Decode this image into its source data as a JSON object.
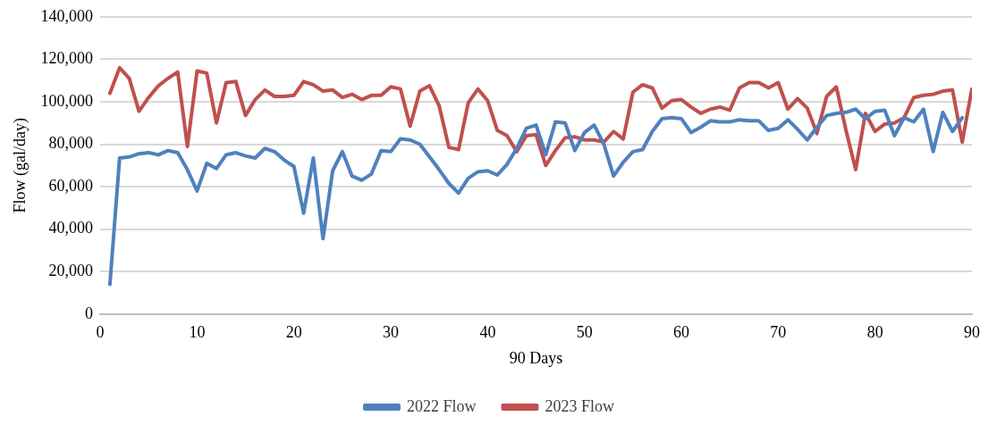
{
  "chart_data": {
    "type": "line",
    "xlabel": "90 Days",
    "ylabel": "Flow (gal/day)",
    "xlim": [
      0,
      90
    ],
    "xticks": [
      0,
      10,
      20,
      30,
      40,
      50,
      60,
      70,
      80,
      90
    ],
    "ylim": [
      0,
      140000
    ],
    "yticks": [
      0,
      {
        "value": 20000,
        "label": "20,000"
      },
      {
        "value": 40000,
        "label": "40,000"
      },
      {
        "value": 60000,
        "label": "60,000"
      },
      {
        "value": 80000,
        "label": "80,000"
      },
      {
        "value": 100000,
        "label": "100,000"
      },
      {
        "value": 120000,
        "label": "120,000"
      },
      {
        "value": 140000,
        "label": "140,000"
      }
    ],
    "grid": "y",
    "legend": "bottom",
    "marker": "none",
    "line_style": "solid",
    "series": [
      {
        "name": "2022 Flow",
        "color": "#4f81bd",
        "x": [
          1,
          2,
          3,
          4,
          5,
          6,
          7,
          8,
          9,
          10,
          11,
          12,
          13,
          14,
          15,
          16,
          17,
          18,
          19,
          20,
          21,
          22,
          23,
          24,
          25,
          26,
          27,
          28,
          29,
          30,
          31,
          32,
          33,
          34,
          35,
          36,
          37,
          38,
          39,
          40,
          41,
          42,
          43,
          44,
          45,
          46,
          47,
          48,
          49,
          50,
          51,
          52,
          53,
          54,
          55,
          56,
          57,
          58,
          59,
          60,
          61,
          62,
          63,
          64,
          65,
          66,
          67,
          68,
          69,
          70,
          71,
          72,
          73,
          74,
          75,
          76,
          77,
          78,
          79,
          80,
          81,
          82,
          83,
          84,
          85,
          86,
          87,
          88,
          89
        ],
        "values": [
          14000,
          73500,
          74000,
          75500,
          76000,
          75000,
          77000,
          76000,
          68000,
          58000,
          71000,
          68500,
          75000,
          76000,
          74500,
          73500,
          78000,
          76500,
          72500,
          69500,
          47500,
          73500,
          35500,
          67500,
          76500,
          65000,
          63000,
          66000,
          77000,
          76500,
          82500,
          82000,
          80000,
          74000,
          68000,
          61500,
          57000,
          64000,
          67000,
          67500,
          65500,
          70500,
          78000,
          87500,
          89000,
          75000,
          90500,
          90000,
          77000,
          85500,
          89000,
          80000,
          65000,
          71500,
          76500,
          77500,
          86000,
          92000,
          92500,
          92000,
          85500,
          88000,
          91000,
          90500,
          90500,
          91500,
          91000,
          91000,
          86500,
          87500,
          91500,
          87000,
          82000,
          88000,
          93500,
          94500,
          95000,
          96500,
          92000,
          95500,
          96000,
          84000,
          92500,
          90500,
          96500,
          76500,
          95000,
          86000,
          92500
        ]
      },
      {
        "name": "2023 Flow",
        "color": "#c0504d",
        "x": [
          1,
          2,
          3,
          4,
          5,
          6,
          7,
          8,
          9,
          10,
          11,
          12,
          13,
          14,
          15,
          16,
          17,
          18,
          19,
          20,
          21,
          22,
          23,
          24,
          25,
          26,
          27,
          28,
          29,
          30,
          31,
          32,
          33,
          34,
          35,
          36,
          37,
          38,
          39,
          40,
          41,
          42,
          43,
          44,
          45,
          46,
          47,
          48,
          49,
          50,
          51,
          52,
          53,
          54,
          55,
          56,
          57,
          58,
          59,
          60,
          61,
          62,
          63,
          64,
          65,
          66,
          67,
          68,
          69,
          70,
          71,
          72,
          73,
          74,
          75,
          76,
          77,
          78,
          79,
          80,
          81,
          82,
          83,
          84,
          85,
          86,
          87,
          88,
          89,
          90
        ],
        "values": [
          104000,
          116000,
          111000,
          95500,
          102000,
          107500,
          111000,
          114000,
          79000,
          114500,
          113500,
          90000,
          109000,
          109500,
          93500,
          101000,
          105500,
          102500,
          102500,
          103000,
          109500,
          108000,
          105000,
          105500,
          102000,
          103500,
          101000,
          103000,
          103000,
          107000,
          106000,
          88500,
          105000,
          107500,
          98000,
          78500,
          77500,
          99500,
          106000,
          100500,
          86500,
          84000,
          76500,
          84000,
          84500,
          70000,
          77000,
          83000,
          83500,
          82000,
          82000,
          81000,
          86000,
          82500,
          104500,
          108000,
          106500,
          97000,
          100500,
          101000,
          97500,
          94500,
          96500,
          97500,
          96000,
          106500,
          109000,
          109000,
          106500,
          109000,
          96500,
          101500,
          97000,
          85000,
          102500,
          107000,
          86500,
          68000,
          94500,
          86000,
          89500,
          90000,
          92500,
          102000,
          103000,
          103500,
          105000,
          105500,
          81000,
          106000
        ]
      }
    ]
  }
}
